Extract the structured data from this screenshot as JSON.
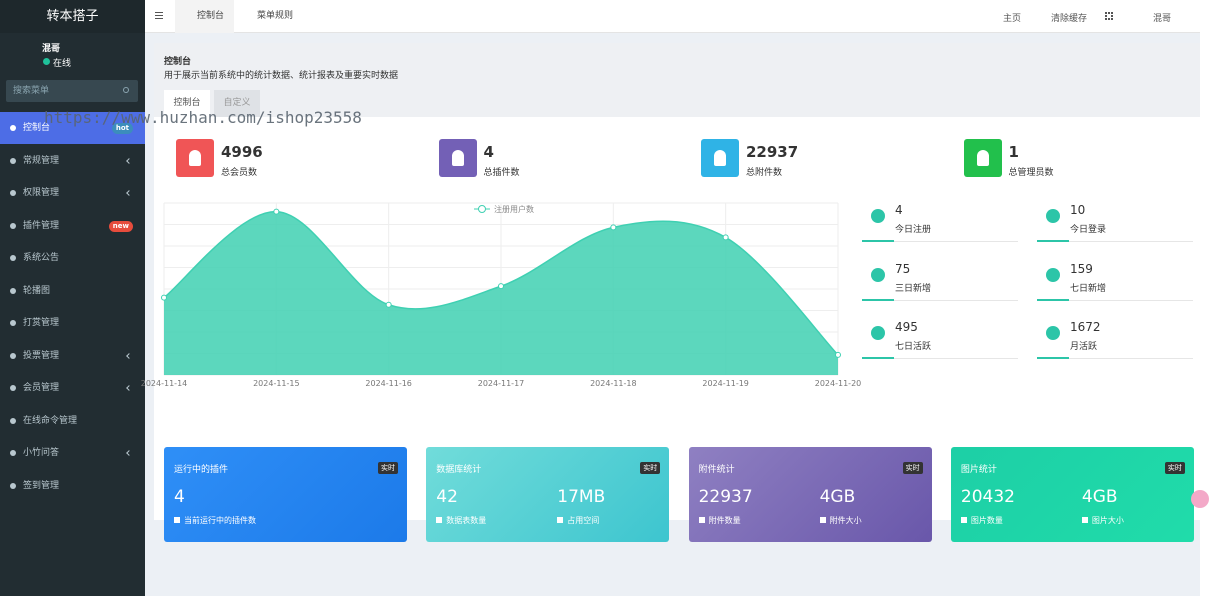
{
  "sidebar": {
    "brand": "转本搭子",
    "user": "混哥",
    "status": "在线",
    "search_placeholder": "搜索菜单",
    "menu": [
      {
        "label": "控制台",
        "badge": "hot",
        "active": true
      },
      {
        "label": "常规管理",
        "submenu": true
      },
      {
        "label": "权限管理",
        "submenu": true
      },
      {
        "label": "插件管理",
        "badge": "new"
      },
      {
        "label": "系统公告"
      },
      {
        "label": "轮播图"
      },
      {
        "label": "打赏管理"
      },
      {
        "label": "投票管理",
        "submenu": true
      },
      {
        "label": "会员管理",
        "submenu": true
      },
      {
        "label": "在线命令管理"
      },
      {
        "label": "小竹问答",
        "submenu": true
      },
      {
        "label": "签到管理"
      }
    ]
  },
  "topbar": {
    "tabs": [
      "控制台",
      "菜单规则"
    ],
    "links": [
      "主页",
      "清除缓存"
    ],
    "user": "混哥"
  },
  "page": {
    "title": "控制台",
    "subtitle": "用于展示当前系统中的统计数据、统计报表及重要实时数据",
    "tabs": [
      "控制台",
      "自定义"
    ]
  },
  "stats": [
    {
      "value": 4996,
      "label": "总会员数",
      "color": "#f05556"
    },
    {
      "value": 4,
      "label": "总插件数",
      "color": "#7360b6"
    },
    {
      "value": 22937,
      "label": "总附件数",
      "color": "#2fb3e6"
    },
    {
      "value": 1,
      "label": "总管理员数",
      "color": "#22c04c"
    }
  ],
  "side_stats": [
    {
      "value": 4,
      "label": "今日注册"
    },
    {
      "value": 10,
      "label": "今日登录"
    },
    {
      "value": 75,
      "label": "三日新增"
    },
    {
      "value": 159,
      "label": "七日新增"
    },
    {
      "value": 495,
      "label": "七日活跃"
    },
    {
      "value": 1672,
      "label": "月活跃"
    }
  ],
  "chart_data": {
    "type": "area",
    "categories": [
      "2024-11-14",
      "2024-11-15",
      "2024-11-16",
      "2024-11-17",
      "2024-11-18",
      "2024-11-19",
      "2024-11-20"
    ],
    "series": [
      {
        "name": "注册用户数",
        "color": "#3fd0b2",
        "values": [
          540,
          1140,
          490,
          620,
          1030,
          960,
          140
        ]
      }
    ],
    "ylim": [
      0,
      1200
    ],
    "grid": true
  },
  "cards": [
    {
      "title": "运行中的插件",
      "badge": "实时",
      "color": [
        "#2f8ff7",
        "#1c7ae9"
      ],
      "items": [
        {
          "value": 4,
          "label": "当前运行中的插件数"
        }
      ]
    },
    {
      "title": "数据库统计",
      "badge": "实时",
      "color": [
        "#71dcda",
        "#3dc5cf"
      ],
      "items": [
        {
          "value": 42,
          "label": "数据表数量"
        },
        {
          "value": "17MB",
          "label": "占用空间"
        }
      ]
    },
    {
      "title": "附件统计",
      "badge": "实时",
      "color": [
        "#8f80c2",
        "#6957aa"
      ],
      "items": [
        {
          "value": 22937,
          "label": "附件数量"
        },
        {
          "value": "4GB",
          "label": "附件大小"
        }
      ]
    },
    {
      "title": "图片统计",
      "badge": "实时",
      "color": [
        "#1dcfa6",
        "#20dcaa"
      ],
      "items": [
        {
          "value": 20432,
          "label": "图片数量"
        },
        {
          "value": "4GB",
          "label": "图片大小"
        }
      ]
    }
  ],
  "watermark": "https://www.huzhan.com/ishop23558"
}
